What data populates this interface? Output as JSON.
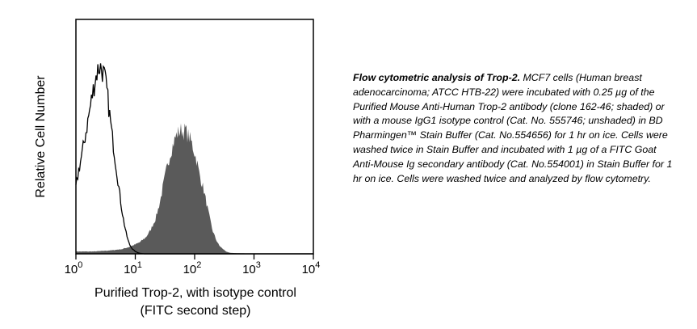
{
  "chart_data": {
    "type": "area",
    "title": "",
    "xlabel": "Purified Trop-2, with isotype control",
    "xlabel_line2": "(FITC second step)",
    "ylabel": "Relative Cell Number",
    "x_scale": "log",
    "xlim": [
      1,
      10000
    ],
    "ylim": [
      0,
      1
    ],
    "grid": false,
    "legend": "none",
    "x_ticks": [
      {
        "value": 1,
        "base": "10",
        "exp": "0"
      },
      {
        "value": 10,
        "base": "10",
        "exp": "1"
      },
      {
        "value": 100,
        "base": "10",
        "exp": "2"
      },
      {
        "value": 1000,
        "base": "10",
        "exp": "3"
      },
      {
        "value": 10000,
        "base": "10",
        "exp": "4"
      }
    ],
    "series": [
      {
        "style": "shaded",
        "color": "#5a5a5a",
        "x": [
          1,
          2,
          4,
          6,
          8,
          10,
          12,
          15,
          18,
          22,
          26,
          30,
          35,
          40,
          45,
          50,
          55,
          60,
          65,
          70,
          75,
          80,
          90,
          100,
          110,
          120,
          140,
          160,
          180,
          200,
          230,
          260,
          300,
          350,
          400,
          600,
          10000
        ],
        "y": [
          0.01,
          0.01,
          0.015,
          0.02,
          0.03,
          0.04,
          0.05,
          0.07,
          0.1,
          0.15,
          0.22,
          0.3,
          0.38,
          0.44,
          0.48,
          0.51,
          0.52,
          0.53,
          0.52,
          0.53,
          0.51,
          0.5,
          0.47,
          0.43,
          0.39,
          0.34,
          0.28,
          0.21,
          0.15,
          0.1,
          0.06,
          0.035,
          0.02,
          0.008,
          0.004,
          0.002,
          0.0
        ]
      },
      {
        "style": "outline",
        "color": "#000000",
        "x": [
          1,
          1.1,
          1.3,
          1.5,
          1.7,
          1.9,
          2.1,
          2.3,
          2.5,
          2.7,
          3.0,
          3.3,
          3.6,
          4.0,
          4.5,
          5.0,
          5.5,
          6.0,
          6.5,
          7.0,
          7.5,
          8.0,
          9.0,
          10,
          11,
          12,
          14,
          100,
          10000
        ],
        "y": [
          0.28,
          0.35,
          0.44,
          0.53,
          0.61,
          0.68,
          0.74,
          0.78,
          0.8,
          0.79,
          0.76,
          0.7,
          0.62,
          0.52,
          0.42,
          0.33,
          0.25,
          0.18,
          0.13,
          0.09,
          0.06,
          0.04,
          0.02,
          0.01,
          0.005,
          0.002,
          0.0,
          0.0,
          0.0
        ]
      }
    ]
  },
  "caption": {
    "title": "Flow cytometric analysis of Trop-2.",
    "body": "MCF7 cells (Human breast adenocarcinoma; ATCC HTB-22) were incubated with 0.25 µg of the Purified Mouse Anti-Human Trop-2 antibody (clone 162-46; shaded) or with a mouse IgG1 isotype control (Cat. No. 555746; unshaded) in BD Pharmingen™ Stain Buffer (Cat. No.554656) for 1 hr on ice. Cells were washed twice in Stain Buffer and incubated with 1 µg of a FITC Goat Anti-Mouse Ig secondary antibody (Cat. No.554001) in Stain Buffer for 1 hr on ice. Cells were washed twice and analyzed by flow cytometry."
  }
}
